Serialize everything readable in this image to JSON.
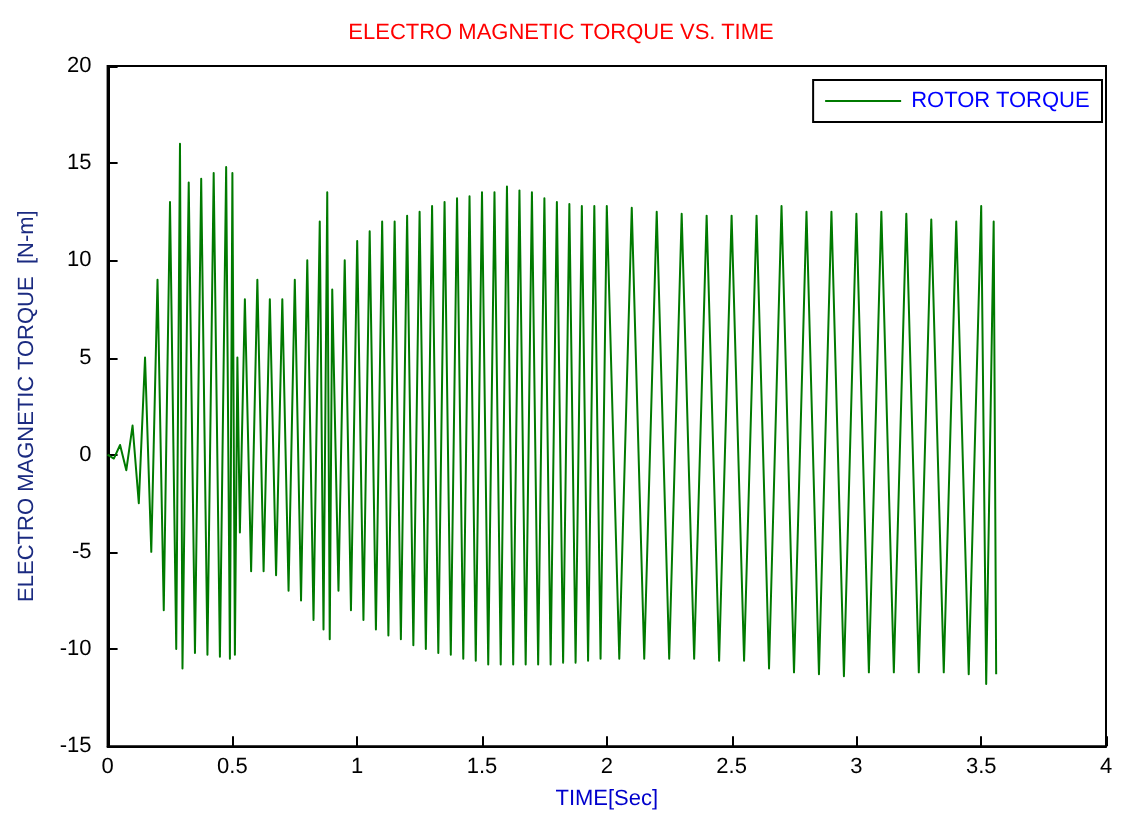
{
  "chart_data": {
    "type": "line",
    "title": "ELECTRO MAGNETIC TORQUE VS. TIME",
    "xlabel": "TIME[Sec]",
    "ylabel": "ELECTRO MAGNETIC TORQUE  [N-m]",
    "xlim": [
      0,
      4
    ],
    "xticks": [
      0,
      0.5,
      1,
      1.5,
      2,
      2.5,
      3,
      3.5,
      4
    ],
    "ylim": [
      -15,
      20
    ],
    "yticks": [
      -15,
      -10,
      -5,
      0,
      5,
      10,
      15,
      20
    ],
    "legend": "top right",
    "marker": "none",
    "line_style": "solid",
    "series": [
      {
        "name": "ROTOR TORQUE",
        "color": "#007a00",
        "x": [
          0,
          0.025,
          0.05,
          0.075,
          0.1,
          0.125,
          0.15,
          0.175,
          0.2,
          0.225,
          0.25,
          0.275,
          0.29,
          0.3,
          0.325,
          0.35,
          0.375,
          0.4,
          0.425,
          0.45,
          0.475,
          0.49,
          0.5,
          0.51,
          0.52,
          0.53,
          0.55,
          0.575,
          0.6,
          0.625,
          0.65,
          0.675,
          0.7,
          0.725,
          0.75,
          0.775,
          0.8,
          0.825,
          0.85,
          0.865,
          0.88,
          0.89,
          0.9,
          0.925,
          0.95,
          0.975,
          1.0,
          1.025,
          1.05,
          1.075,
          1.1,
          1.125,
          1.15,
          1.175,
          1.2,
          1.225,
          1.25,
          1.275,
          1.3,
          1.325,
          1.35,
          1.375,
          1.4,
          1.425,
          1.45,
          1.475,
          1.5,
          1.525,
          1.55,
          1.575,
          1.6,
          1.625,
          1.65,
          1.675,
          1.7,
          1.725,
          1.75,
          1.775,
          1.8,
          1.825,
          1.85,
          1.875,
          1.9,
          1.925,
          1.95,
          1.975,
          2.0,
          2.05,
          2.1,
          2.15,
          2.2,
          2.25,
          2.3,
          2.35,
          2.4,
          2.45,
          2.5,
          2.55,
          2.6,
          2.65,
          2.7,
          2.75,
          2.8,
          2.85,
          2.9,
          2.95,
          3.0,
          3.05,
          3.1,
          3.15,
          3.2,
          3.25,
          3.3,
          3.35,
          3.4,
          3.45,
          3.5,
          3.52,
          3.55,
          3.56
        ],
        "values": [
          0,
          -0.2,
          0.5,
          -0.8,
          1.5,
          -2.5,
          5,
          -5,
          9,
          -8,
          13,
          -10,
          16,
          -11,
          14,
          -10.2,
          14.2,
          -10.3,
          14.5,
          -10.4,
          14.8,
          -10.5,
          14.5,
          -10.3,
          5,
          -4,
          8,
          -6,
          9,
          -6,
          8,
          -6.2,
          8,
          -7,
          9,
          -7.5,
          10,
          -8.5,
          12,
          -9,
          13.5,
          -9.5,
          8.5,
          -7,
          10,
          -8,
          11,
          -8.5,
          11.5,
          -9,
          12,
          -9.3,
          12,
          -9.5,
          12.3,
          -9.8,
          12.5,
          -10,
          12.8,
          -10.2,
          13,
          -10.3,
          13.2,
          -10.5,
          13.3,
          -10.6,
          13.5,
          -10.8,
          13.5,
          -10.8,
          13.8,
          -10.8,
          13.6,
          -10.8,
          13.5,
          -10.8,
          13.2,
          -10.8,
          13,
          -10.7,
          12.9,
          -10.7,
          12.8,
          -10.6,
          12.8,
          -10.5,
          12.8,
          -10.5,
          12.7,
          -10.5,
          12.5,
          -10.5,
          12.4,
          -10.5,
          12.3,
          -10.6,
          12.3,
          -10.6,
          12.3,
          -11,
          12.8,
          -11.2,
          12.5,
          -11.3,
          12.5,
          -11.4,
          12.4,
          -11.2,
          12.5,
          -11.2,
          12.4,
          -11.2,
          12.1,
          -11.2,
          12,
          -11.3,
          12.8,
          -11.8,
          12,
          -11.3
        ]
      }
    ]
  }
}
